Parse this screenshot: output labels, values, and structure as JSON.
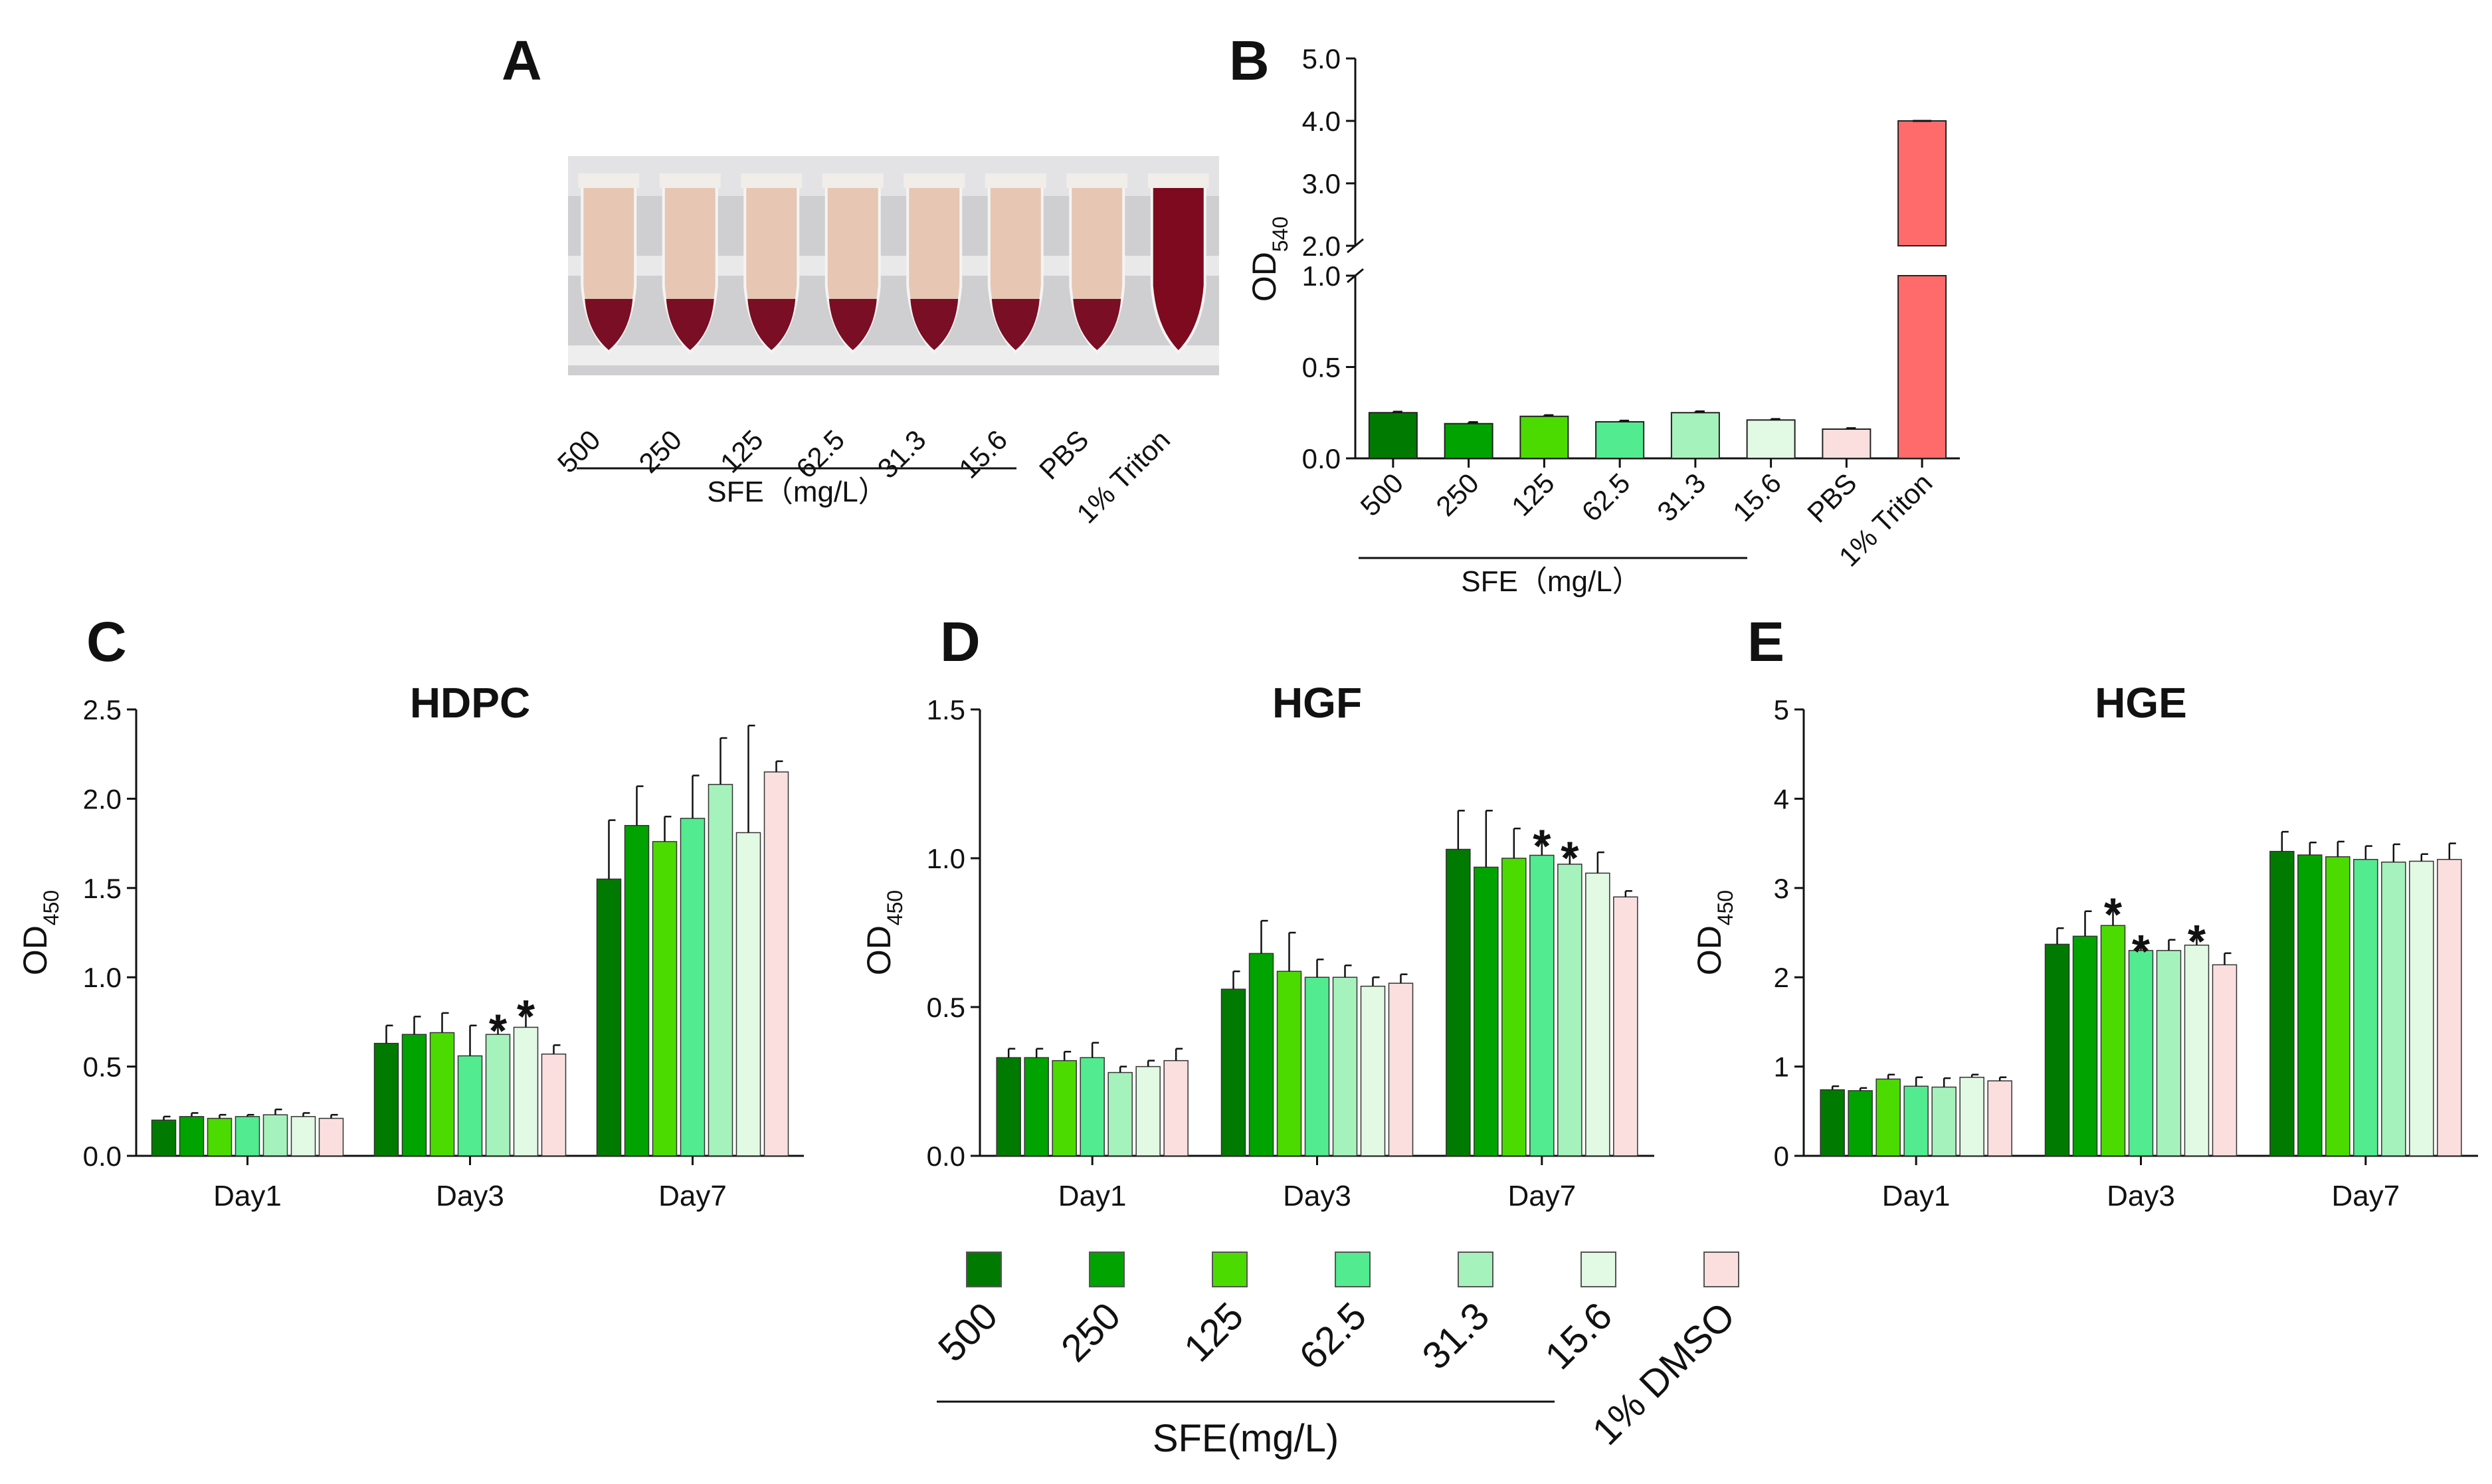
{
  "figure": {
    "panel_labels": [
      "A",
      "B",
      "C",
      "D",
      "E"
    ]
  },
  "panel_a": {
    "tube_labels": [
      "500",
      "250",
      "125",
      "62.5",
      "31.3",
      "15.6",
      "PBS",
      "1% Triton"
    ],
    "sfe_label": "SFE（mg/L）",
    "tube_colors": {
      "supernatant": "#e7c6b4",
      "pellet": "#7a0e24",
      "triton": "#7d0a1e"
    }
  },
  "chart_data": [
    {
      "id": "B",
      "type": "bar",
      "title": "",
      "ylabel": "OD540",
      "categories": [
        "500",
        "250",
        "125",
        "62.5",
        "31.3",
        "15.6",
        "PBS",
        "1% Triton"
      ],
      "values": [
        0.25,
        0.19,
        0.23,
        0.2,
        0.25,
        0.21,
        0.16,
        4.0
      ],
      "errors": [
        0.005,
        0.008,
        0.006,
        0.006,
        0.007,
        0.005,
        0.005,
        0.01
      ],
      "colors": [
        "#007a00",
        "#00a300",
        "#4cdb00",
        "#52eb8f",
        "#a6f2bc",
        "#e2f9e4",
        "#fbdfdf",
        "#ff6b6b"
      ],
      "axis_break": [
        1.0,
        2.0
      ],
      "ylim_lower": [
        0,
        1.0
      ],
      "ylim_upper": [
        2.0,
        5.0
      ],
      "yticks_lower": [
        "0.0",
        "0.5",
        "1.0"
      ],
      "yticks_upper": [
        "2.0",
        "3.0",
        "4.0",
        "5.0"
      ],
      "sfe_label": "SFE（mg/L）"
    },
    {
      "id": "C",
      "type": "bar",
      "title": "HDPC",
      "ylabel": "OD450",
      "categories": [
        "Day1",
        "Day3",
        "Day7"
      ],
      "ylim": [
        0,
        2.5
      ],
      "yticks": [
        "0.0",
        "0.5",
        "1.0",
        "1.5",
        "2.0",
        "2.5"
      ],
      "series": [
        {
          "name": "500",
          "values": [
            0.2,
            0.63,
            1.55
          ],
          "errors": [
            0.02,
            0.1,
            0.33
          ]
        },
        {
          "name": "250",
          "values": [
            0.22,
            0.68,
            1.85
          ],
          "errors": [
            0.02,
            0.1,
            0.22
          ]
        },
        {
          "name": "125",
          "values": [
            0.21,
            0.69,
            1.76
          ],
          "errors": [
            0.02,
            0.11,
            0.14
          ]
        },
        {
          "name": "62.5",
          "values": [
            0.22,
            0.56,
            1.89
          ],
          "errors": [
            0.01,
            0.17,
            0.24
          ]
        },
        {
          "name": "31.3",
          "values": [
            0.23,
            0.68,
            2.08
          ],
          "errors": [
            0.03,
            0.07,
            0.26
          ]
        },
        {
          "name": "15.6",
          "values": [
            0.22,
            0.72,
            1.81
          ],
          "errors": [
            0.02,
            0.11,
            0.6
          ]
        },
        {
          "name": "1% DMSO",
          "values": [
            0.21,
            0.57,
            2.15
          ],
          "errors": [
            0.02,
            0.05,
            0.06
          ]
        }
      ],
      "significance": [
        {
          "category": "Day3",
          "series": "31.3",
          "label": "*"
        },
        {
          "category": "Day3",
          "series": "15.6",
          "label": "*"
        }
      ]
    },
    {
      "id": "D",
      "type": "bar",
      "title": "HGF",
      "ylabel": "OD450",
      "categories": [
        "Day1",
        "Day3",
        "Day7"
      ],
      "ylim": [
        0,
        1.5
      ],
      "yticks": [
        "0.0",
        "0.5",
        "1.0",
        "1.5"
      ],
      "series": [
        {
          "name": "500",
          "values": [
            0.33,
            0.56,
            1.03
          ],
          "errors": [
            0.03,
            0.06,
            0.13
          ]
        },
        {
          "name": "250",
          "values": [
            0.33,
            0.68,
            0.97
          ],
          "errors": [
            0.03,
            0.11,
            0.19
          ]
        },
        {
          "name": "125",
          "values": [
            0.32,
            0.62,
            1.0
          ],
          "errors": [
            0.03,
            0.13,
            0.1
          ]
        },
        {
          "name": "62.5",
          "values": [
            0.33,
            0.6,
            1.01
          ],
          "errors": [
            0.05,
            0.06,
            0.06
          ]
        },
        {
          "name": "31.3",
          "values": [
            0.28,
            0.6,
            0.98
          ],
          "errors": [
            0.02,
            0.04,
            0.05
          ]
        },
        {
          "name": "15.6",
          "values": [
            0.3,
            0.57,
            0.95
          ],
          "errors": [
            0.02,
            0.03,
            0.07
          ]
        },
        {
          "name": "1% DMSO",
          "values": [
            0.32,
            0.58,
            0.87
          ],
          "errors": [
            0.04,
            0.03,
            0.02
          ]
        }
      ],
      "significance": [
        {
          "category": "Day7",
          "series": "62.5",
          "label": "*"
        },
        {
          "category": "Day7",
          "series": "31.3",
          "label": "*"
        }
      ]
    },
    {
      "id": "E",
      "type": "bar",
      "title": "HGE",
      "ylabel": "OD450",
      "categories": [
        "Day1",
        "Day3",
        "Day7"
      ],
      "ylim": [
        0,
        5
      ],
      "yticks": [
        "0",
        "1",
        "2",
        "3",
        "4",
        "5"
      ],
      "series": [
        {
          "name": "500",
          "values": [
            0.74,
            2.37,
            3.41
          ],
          "errors": [
            0.04,
            0.18,
            0.22
          ]
        },
        {
          "name": "250",
          "values": [
            0.73,
            2.46,
            3.37
          ],
          "errors": [
            0.03,
            0.28,
            0.14
          ]
        },
        {
          "name": "125",
          "values": [
            0.86,
            2.58,
            3.35
          ],
          "errors": [
            0.05,
            0.22,
            0.17
          ]
        },
        {
          "name": "62.5",
          "values": [
            0.78,
            2.3,
            3.32
          ],
          "errors": [
            0.1,
            0.09,
            0.15
          ]
        },
        {
          "name": "31.3",
          "values": [
            0.77,
            2.3,
            3.29
          ],
          "errors": [
            0.1,
            0.12,
            0.2
          ]
        },
        {
          "name": "15.6",
          "values": [
            0.88,
            2.36,
            3.3
          ],
          "errors": [
            0.03,
            0.14,
            0.08
          ]
        },
        {
          "name": "1% DMSO",
          "values": [
            0.84,
            2.14,
            3.32
          ],
          "errors": [
            0.04,
            0.13,
            0.18
          ]
        }
      ],
      "significance": [
        {
          "category": "Day3",
          "series": "125",
          "label": "*"
        },
        {
          "category": "Day3",
          "series": "62.5",
          "label": "*"
        },
        {
          "category": "Day3",
          "series": "15.6",
          "label": "*"
        }
      ]
    }
  ],
  "legend": {
    "items": [
      {
        "label": "500",
        "color": "#007a00"
      },
      {
        "label": "250",
        "color": "#00a300"
      },
      {
        "label": "125",
        "color": "#4cdb00"
      },
      {
        "label": "62.5",
        "color": "#52eb8f"
      },
      {
        "label": "31.3",
        "color": "#a6f2bc"
      },
      {
        "label": "15.6",
        "color": "#e2f9e4"
      },
      {
        "label": "1% DMSO",
        "color": "#fbdfdf"
      }
    ],
    "sfe_label": "SFE(mg/L)"
  }
}
